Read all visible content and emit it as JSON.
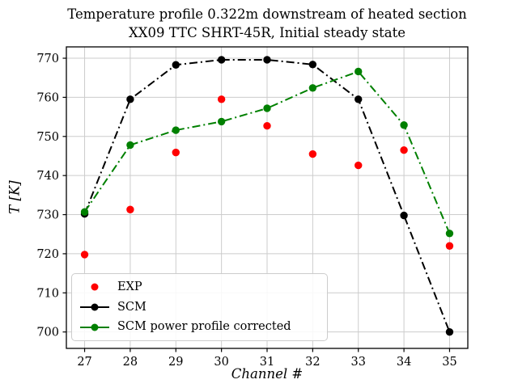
{
  "figure": {
    "title_line1": "Temperature profile 0.322m downstream of heated section",
    "title_line2": "XX09 TTC SHRT-45R, Initial steady state"
  },
  "chart_data": {
    "type": "line",
    "title": "Temperature profile 0.322m downstream of heated section — XX09 TTC SHRT-45R, Initial steady state",
    "xlabel": "Channel #",
    "ylabel": "T [K]",
    "x": [
      27,
      28,
      29,
      30,
      31,
      32,
      33,
      34,
      35
    ],
    "xticks": [
      27,
      28,
      29,
      30,
      31,
      32,
      33,
      34,
      35
    ],
    "yticks": [
      700,
      710,
      720,
      730,
      740,
      750,
      760,
      770
    ],
    "xlim": [
      26.6,
      35.4
    ],
    "ylim": [
      695.8,
      772.9
    ],
    "grid": true,
    "grid_color": "#cccccc",
    "legend_position": "lower left",
    "series": [
      {
        "name": "EXP",
        "color": "#ff0000",
        "marker": "circle",
        "line": "none",
        "values": [
          719.8,
          731.3,
          745.9,
          759.5,
          752.7,
          745.5,
          742.6,
          746.5,
          722.0
        ]
      },
      {
        "name": "SCM",
        "color": "#000000",
        "marker": "circle",
        "line": "dashdot",
        "values": [
          730.2,
          759.5,
          768.3,
          769.6,
          769.6,
          768.4,
          759.5,
          729.8,
          700.0
        ]
      },
      {
        "name": "SCM power profile corrected",
        "color": "#008000",
        "marker": "circle",
        "line": "dashdot",
        "values": [
          730.7,
          747.8,
          751.6,
          753.8,
          757.2,
          762.4,
          766.6,
          752.9,
          725.2
        ]
      }
    ]
  }
}
